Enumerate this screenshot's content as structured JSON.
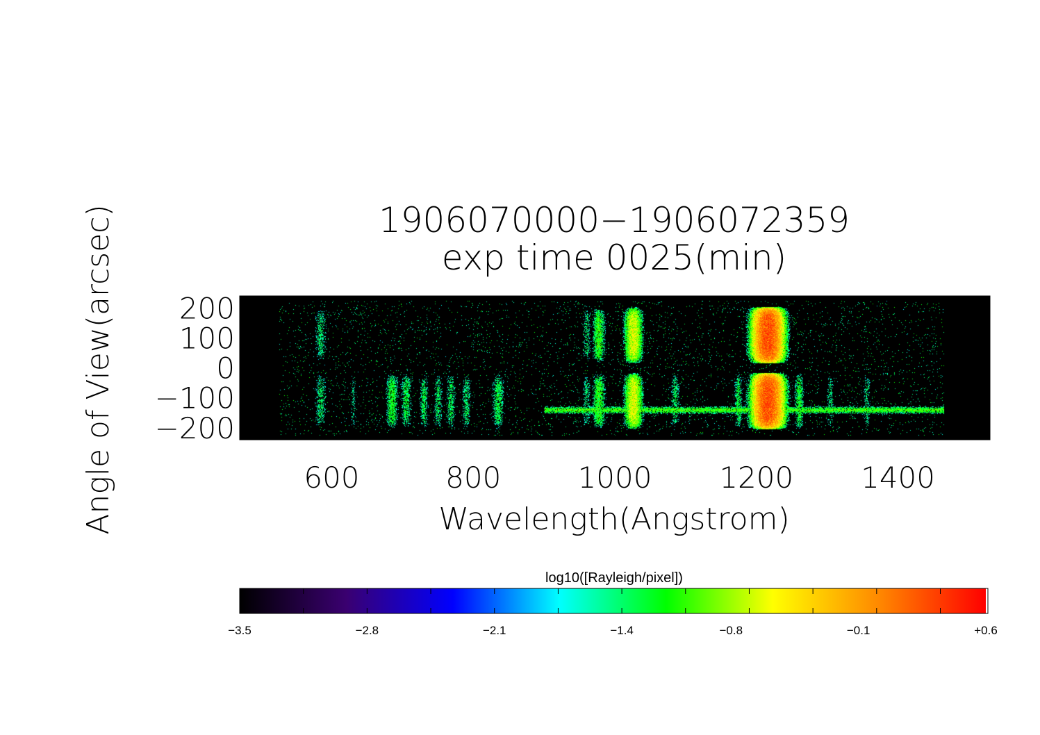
{
  "chart_data": {
    "type": "heatmap",
    "title": "1906070000−1906072359",
    "subtitle": "exp time 0025(min)",
    "xlabel": "Wavelength(Angstrom)",
    "ylabel": "Angle of View(arcsec)",
    "xlim": [
      470,
      1530
    ],
    "ylim": [
      -240,
      240
    ],
    "xticks": [
      {
        "value": 600,
        "label": "600"
      },
      {
        "value": 800,
        "label": "800"
      },
      {
        "value": 1000,
        "label": "1000"
      },
      {
        "value": 1200,
        "label": "1200"
      },
      {
        "value": 1400,
        "label": "1400"
      }
    ],
    "yticks": [
      {
        "value": 200,
        "label": "200"
      },
      {
        "value": 100,
        "label": "100"
      },
      {
        "value": 0,
        "label": "0"
      },
      {
        "value": -100,
        "label": "−100"
      },
      {
        "value": -200,
        "label": "−200"
      }
    ],
    "detector_range": [
      525,
      1465
    ],
    "background_log": -3.5,
    "emission_lines": [
      {
        "wavelength": 584,
        "width": 8,
        "peak": -1.45,
        "upper": true,
        "lower": true
      },
      {
        "wavelength": 630,
        "width": 4,
        "peak": -1.6,
        "upper": false,
        "lower": true
      },
      {
        "wavelength": 685,
        "width": 8,
        "peak": -1.2,
        "upper": false,
        "lower": true
      },
      {
        "wavelength": 705,
        "width": 7,
        "peak": -1.3,
        "upper": false,
        "lower": true
      },
      {
        "wavelength": 730,
        "width": 6,
        "peak": -1.35,
        "upper": false,
        "lower": true
      },
      {
        "wavelength": 750,
        "width": 6,
        "peak": -1.4,
        "upper": false,
        "lower": true
      },
      {
        "wavelength": 768,
        "width": 6,
        "peak": -1.35,
        "upper": false,
        "lower": true
      },
      {
        "wavelength": 790,
        "width": 6,
        "peak": -1.4,
        "upper": false,
        "lower": true
      },
      {
        "wavelength": 835,
        "width": 8,
        "peak": -1.3,
        "upper": false,
        "lower": true
      },
      {
        "wavelength": 960,
        "width": 6,
        "peak": -1.5,
        "upper": true,
        "lower": true
      },
      {
        "wavelength": 977,
        "width": 8,
        "peak": -1.1,
        "upper": true,
        "lower": true
      },
      {
        "wavelength": 1026,
        "width": 10,
        "peak": -0.6,
        "upper": true,
        "lower": true
      },
      {
        "wavelength": 1085,
        "width": 6,
        "peak": -1.4,
        "upper": false,
        "lower": true
      },
      {
        "wavelength": 1174,
        "width": 5,
        "peak": -1.3,
        "upper": false,
        "lower": true
      },
      {
        "wavelength": 1216,
        "width": 16,
        "peak": 0.3,
        "upper": true,
        "lower": true
      },
      {
        "wavelength": 1260,
        "width": 6,
        "peak": -1.2,
        "upper": false,
        "lower": true
      },
      {
        "wavelength": 1304,
        "width": 5,
        "peak": -1.5,
        "upper": false,
        "lower": true
      },
      {
        "wavelength": 1356,
        "width": 5,
        "peak": -1.5,
        "upper": false,
        "lower": true
      }
    ],
    "horizontal_band": {
      "angle": -140,
      "from": 900,
      "to": 1465,
      "peak": -1.0
    },
    "colorbar": {
      "label": "log10([Rayleigh/pixel])",
      "min": -3.5,
      "max": 0.6,
      "ticks": [
        {
          "value": -3.5,
          "label": "−3.5"
        },
        {
          "value": -2.8,
          "label": "−2.8"
        },
        {
          "value": -2.1,
          "label": "−2.1"
        },
        {
          "value": -1.4,
          "label": "−1.4"
        },
        {
          "value": -0.8,
          "label": "−0.8"
        },
        {
          "value": -0.1,
          "label": "−0.1"
        },
        {
          "value": 0.6,
          "label": "+0.6"
        }
      ],
      "minor_step": 0.35,
      "colors": [
        "#000000",
        "#3a0070",
        "#0000ff",
        "#00ffff",
        "#00ff00",
        "#ffff00",
        "#ff8800",
        "#ff0000"
      ]
    }
  }
}
